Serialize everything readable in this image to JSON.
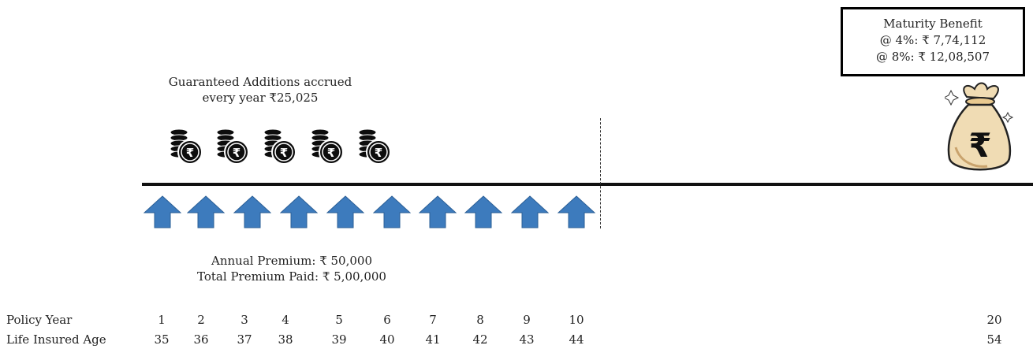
{
  "guaranteed": {
    "line1": "Guaranteed Additions accrued",
    "line2": "every year ₹25,025",
    "coin_count": 5
  },
  "maturity": {
    "title": "Maturity Benefit",
    "at4": "@ 4%: ₹ 7,74,112",
    "at8": "@ 8%:  ₹ 12,08,507"
  },
  "premium": {
    "annual": "Annual Premium: ₹ 50,000",
    "total": "Total Premium Paid: ₹ 5,00,000",
    "arrow_count": 10
  },
  "table": {
    "policy_year_label": "Policy Year",
    "age_label": "Life Insured Age",
    "policy_years": [
      "1",
      "2",
      "3",
      "4",
      "5",
      "6",
      "7",
      "8",
      "9",
      "10",
      "20"
    ],
    "ages": [
      "35",
      "36",
      "37",
      "38",
      "39",
      "40",
      "41",
      "42",
      "43",
      "44",
      "54"
    ]
  },
  "colors": {
    "arrow": "#3d7bbd",
    "coin": "#0d0d0d",
    "bag": "#f0dcb4"
  },
  "icons": {
    "coin": "rupee-coin-stack-icon",
    "bag": "money-bag-icon",
    "arrow": "up-arrow-icon"
  }
}
